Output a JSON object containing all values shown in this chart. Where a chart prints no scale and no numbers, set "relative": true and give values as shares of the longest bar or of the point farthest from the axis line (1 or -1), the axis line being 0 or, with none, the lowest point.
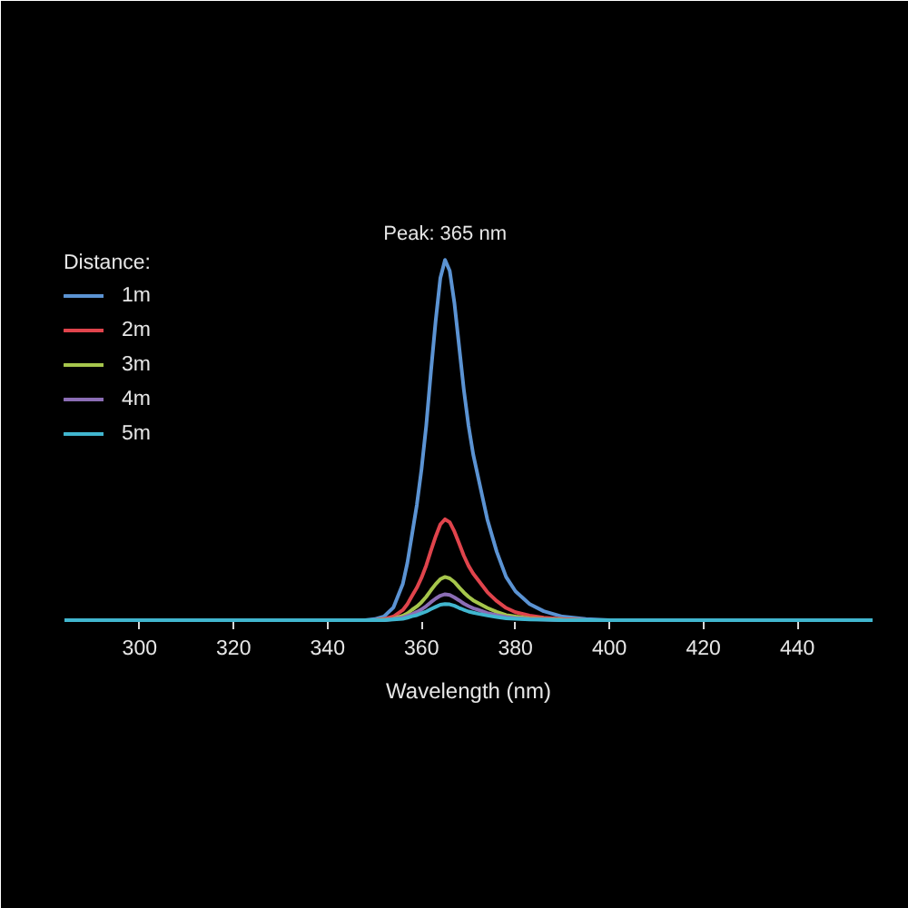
{
  "chart_data": {
    "type": "line",
    "relative": true,
    "xlabel": "Wavelength (nm)",
    "legend_title": "Distance:",
    "legend": "top left",
    "annotations": [
      {
        "text": "Peak: 365 nm",
        "x": 365,
        "y": 1
      }
    ],
    "xlim": [
      284,
      456
    ],
    "xticks": [
      300,
      320,
      340,
      360,
      380,
      400,
      420,
      440
    ],
    "x": [
      284,
      300,
      320,
      340,
      348,
      350,
      352,
      354,
      356,
      357,
      358,
      359,
      360,
      361,
      362,
      363,
      364,
      365,
      366,
      367,
      368,
      369,
      370,
      371,
      372,
      374,
      376,
      378,
      380,
      383,
      386,
      390,
      395,
      400,
      420,
      440,
      456
    ],
    "series": [
      {
        "name": "1m",
        "color": "#5b93d3",
        "values": [
          null,
          null,
          null,
          null,
          0,
          0.003,
          0.01,
          0.035,
          0.1,
          0.16,
          0.24,
          0.32,
          0.42,
          0.54,
          0.69,
          0.83,
          0.95,
          1,
          0.97,
          0.88,
          0.76,
          0.64,
          0.54,
          0.46,
          0.4,
          0.28,
          0.19,
          0.12,
          0.08,
          0.045,
          0.025,
          0.01,
          0.003,
          0,
          null,
          null,
          null
        ]
      },
      {
        "name": "2m",
        "color": "#e0444c",
        "values": [
          null,
          null,
          null,
          null,
          null,
          0,
          0.003,
          0.01,
          0.028,
          0.045,
          0.068,
          0.09,
          0.118,
          0.152,
          0.193,
          0.232,
          0.266,
          0.28,
          0.272,
          0.246,
          0.213,
          0.179,
          0.151,
          0.129,
          0.112,
          0.078,
          0.053,
          0.034,
          0.022,
          0.013,
          0.007,
          0.003,
          0,
          null,
          null,
          null,
          null
        ]
      },
      {
        "name": "3m",
        "color": "#a6c64c",
        "values": [
          null,
          null,
          null,
          null,
          null,
          0,
          0.001,
          0.004,
          0.012,
          0.019,
          0.029,
          0.038,
          0.05,
          0.065,
          0.083,
          0.1,
          0.114,
          0.12,
          0.116,
          0.106,
          0.091,
          0.077,
          0.065,
          0.055,
          0.048,
          0.034,
          0.023,
          0.014,
          0.01,
          0.005,
          0.003,
          0.001,
          0,
          null,
          null,
          null,
          null
        ]
      },
      {
        "name": "4m",
        "color": "#8b6db5",
        "values": [
          null,
          null,
          null,
          null,
          null,
          null,
          0,
          0.003,
          0.007,
          0.012,
          0.017,
          0.023,
          0.03,
          0.039,
          0.05,
          0.06,
          0.068,
          0.072,
          0.07,
          0.063,
          0.055,
          0.046,
          0.039,
          0.033,
          0.029,
          0.02,
          0.014,
          0.009,
          0.006,
          0.003,
          0.002,
          0,
          null,
          null,
          null,
          null,
          null
        ]
      },
      {
        "name": "5m",
        "color": "#41b6cf",
        "values": [
          0,
          0,
          0,
          0,
          0,
          0,
          0,
          0.002,
          0.004,
          0.007,
          0.011,
          0.014,
          0.019,
          0.024,
          0.031,
          0.037,
          0.043,
          0.045,
          0.044,
          0.04,
          0.034,
          0.029,
          0.024,
          0.021,
          0.018,
          0.013,
          0.009,
          0.005,
          0.004,
          0.002,
          0.001,
          0,
          0,
          0,
          0,
          0,
          0
        ]
      }
    ]
  }
}
